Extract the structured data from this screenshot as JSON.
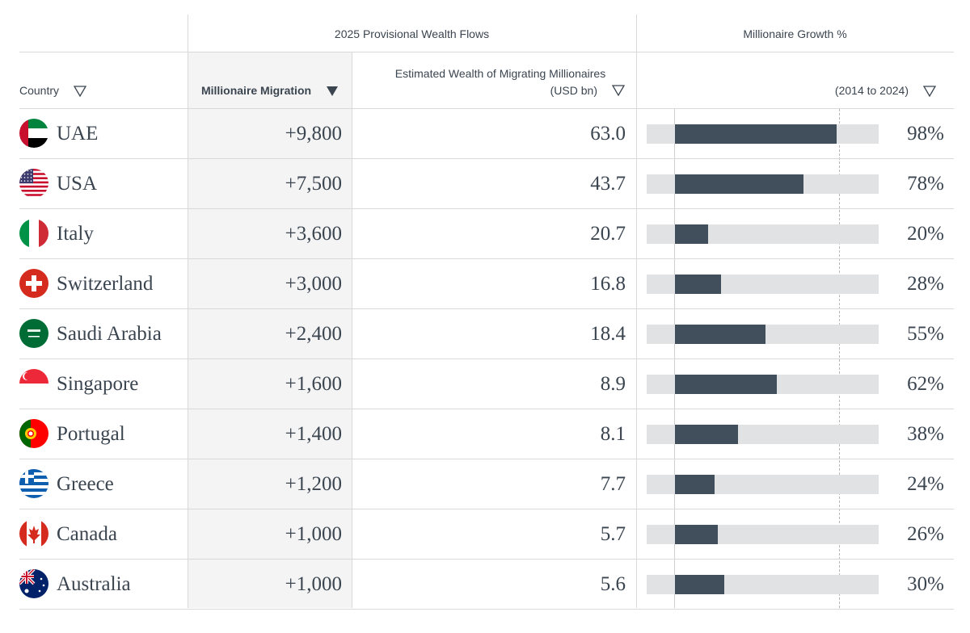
{
  "header": {
    "group_wealth_flows": "2025 Provisional Wealth Flows",
    "group_growth": "Millionaire Growth %",
    "col_country": "Country",
    "col_migration": "Millionaire Migration",
    "col_wealth_line1": "Estimated Wealth of Migrating Millionaires",
    "col_wealth_line2": "(USD bn)",
    "col_growth_sub": "(2014 to 2024)"
  },
  "colors": {
    "bar": "#414f5c",
    "track": "#e1e2e3",
    "text": "#3b4550"
  },
  "chart_data": {
    "type": "table",
    "columns": [
      "Country",
      "Millionaire Migration",
      "Estimated Wealth of Migrating Millionaires (USD bn)",
      "Millionaire Growth % (2014 to 2024)"
    ],
    "growth_axis_max": 100,
    "rows": [
      {
        "country": "UAE",
        "flag": "uae-flag-icon",
        "migration": "+9,800",
        "wealth": "63.0",
        "growth": 98,
        "growth_label": "98%"
      },
      {
        "country": "USA",
        "flag": "usa-flag-icon",
        "migration": "+7,500",
        "wealth": "43.7",
        "growth": 78,
        "growth_label": "78%"
      },
      {
        "country": "Italy",
        "flag": "italy-flag-icon",
        "migration": "+3,600",
        "wealth": "20.7",
        "growth": 20,
        "growth_label": "20%"
      },
      {
        "country": "Switzerland",
        "flag": "switzerland-flag-icon",
        "migration": "+3,000",
        "wealth": "16.8",
        "growth": 28,
        "growth_label": "28%"
      },
      {
        "country": "Saudi Arabia",
        "flag": "saudi-arabia-flag-icon",
        "migration": "+2,400",
        "wealth": "18.4",
        "growth": 55,
        "growth_label": "55%"
      },
      {
        "country": "Singapore",
        "flag": "singapore-flag-icon",
        "migration": "+1,600",
        "wealth": "8.9",
        "growth": 62,
        "growth_label": "62%"
      },
      {
        "country": "Portugal",
        "flag": "portugal-flag-icon",
        "migration": "+1,400",
        "wealth": "8.1",
        "growth": 38,
        "growth_label": "38%"
      },
      {
        "country": "Greece",
        "flag": "greece-flag-icon",
        "migration": "+1,200",
        "wealth": "7.7",
        "growth": 24,
        "growth_label": "24%"
      },
      {
        "country": "Canada",
        "flag": "canada-flag-icon",
        "migration": "+1,000",
        "wealth": "5.7",
        "growth": 26,
        "growth_label": "26%"
      },
      {
        "country": "Australia",
        "flag": "australia-flag-icon",
        "migration": "+1,000",
        "wealth": "5.6",
        "growth": 30,
        "growth_label": "30%"
      }
    ]
  }
}
